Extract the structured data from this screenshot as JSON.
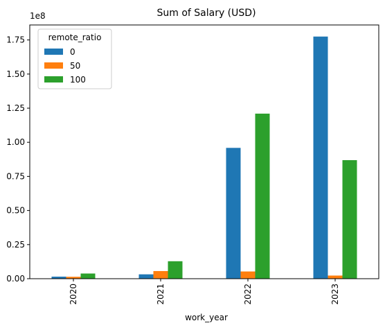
{
  "chart_data": {
    "type": "bar",
    "title": "Sum of Salary (USD)",
    "xlabel": "work_year",
    "ylabel": "",
    "y_offset_label": "1e8",
    "categories": [
      "2020",
      "2021",
      "2022",
      "2023"
    ],
    "legend": {
      "title": "remote_ratio",
      "placement": "top-left"
    },
    "series": [
      {
        "name": "0",
        "color": "#1f77b4",
        "values": [
          1500000,
          3200000,
          95900000,
          177500000
        ]
      },
      {
        "name": "50",
        "color": "#ff7f0e",
        "values": [
          1400000,
          5600000,
          5300000,
          2300000
        ]
      },
      {
        "name": "100",
        "color": "#2ca02c",
        "values": [
          3800000,
          12800000,
          121000000,
          86900000
        ]
      }
    ],
    "ylim": [
      0,
      186000000
    ],
    "yticks": [
      {
        "value": 0,
        "label": "0.00"
      },
      {
        "value": 25000000,
        "label": "0.25"
      },
      {
        "value": 50000000,
        "label": "0.50"
      },
      {
        "value": 75000000,
        "label": "0.75"
      },
      {
        "value": 100000000,
        "label": "1.00"
      },
      {
        "value": 125000000,
        "label": "1.25"
      },
      {
        "value": 150000000,
        "label": "1.50"
      },
      {
        "value": 175000000,
        "label": "1.75"
      }
    ],
    "grid": false
  }
}
